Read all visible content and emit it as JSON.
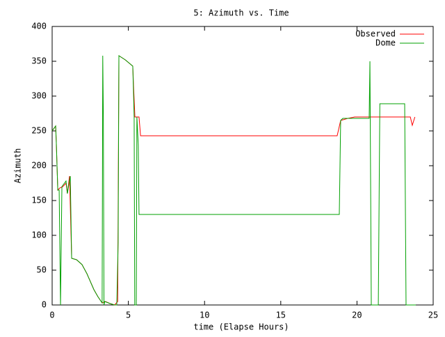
{
  "chart_data": {
    "type": "line",
    "title": "5: Azimuth vs. Time",
    "x_label": "time (Elapse Hours)",
    "y_label": "Azimuth",
    "xlim": [
      0,
      25
    ],
    "xticks": [
      0,
      5,
      10,
      15,
      20,
      25
    ],
    "ylim": [
      0,
      400
    ],
    "yticks": [
      0,
      50,
      100,
      150,
      200,
      250,
      300,
      350,
      400
    ],
    "legend": "top-right",
    "series": [
      {
        "name": "Observed",
        "color": "#ff0000",
        "x": [
          0,
          0.23,
          0.27,
          0.37,
          0.5,
          0.7,
          0.91,
          1.0,
          1.14,
          1.28,
          1.6,
          1.96,
          2.28,
          2.74,
          3.0,
          3.28,
          3.5,
          3.8,
          4.1,
          4.3,
          4.38,
          4.8,
          5.29,
          5.33,
          5.43,
          5.7,
          5.8,
          18.7,
          18.93,
          19.4,
          19.85,
          23.5,
          23.63,
          23.8
        ],
        "values": [
          250,
          257,
          235,
          165,
          168,
          170,
          175,
          160,
          185,
          67,
          65,
          58,
          45,
          22,
          12,
          3,
          5,
          2,
          0,
          5,
          358,
          352,
          343,
          320,
          270,
          270,
          243,
          243,
          265,
          268,
          270,
          270,
          258,
          270
        ]
      },
      {
        "name": "Dome",
        "color": "#00a000",
        "x": [
          0,
          0.23,
          0.27,
          0.37,
          0.46,
          0.55,
          0.64,
          0.91,
          1.0,
          1.19,
          1.28,
          1.6,
          1.96,
          2.28,
          2.74,
          3.0,
          3.28,
          3.32,
          3.36,
          3.4,
          3.45,
          3.8,
          4.1,
          4.24,
          4.33,
          4.38,
          4.8,
          5.29,
          5.38,
          5.42,
          5.52,
          5.56,
          5.65,
          5.7,
          18.84,
          18.93,
          19.07,
          20.8,
          20.85,
          20.94,
          21.4,
          21.5,
          23.13,
          23.22,
          23.86
        ],
        "values": [
          250,
          257,
          235,
          165,
          165,
          0,
          170,
          178,
          160,
          185,
          67,
          65,
          58,
          45,
          22,
          12,
          3,
          358,
          270,
          0,
          5,
          2,
          0,
          0,
          90,
          358,
          352,
          343,
          270,
          0,
          0,
          270,
          230,
          130,
          130,
          265,
          268,
          268,
          350,
          0,
          0,
          289,
          289,
          0,
          0
        ]
      }
    ]
  }
}
